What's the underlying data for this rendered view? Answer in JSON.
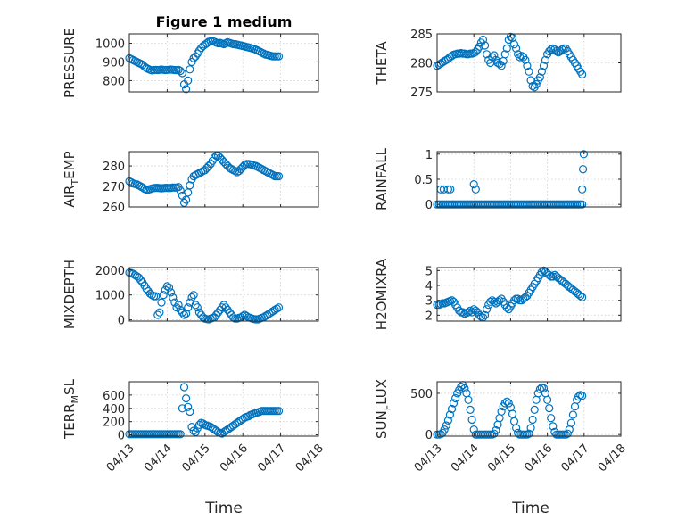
{
  "figure": {
    "title": "Figure 1 medium",
    "marker_color": "#0072BD",
    "xticklabels": [
      "04/13",
      "04/14",
      "04/15",
      "04/16",
      "04/17",
      "04/18"
    ],
    "xlabel": "Time"
  },
  "chart_data": [
    {
      "type": "scatter",
      "ylabel": "PRESSURE",
      "title": "Figure 1 medium",
      "xlim": [
        0,
        5
      ],
      "ylim": [
        740,
        1050
      ],
      "yticks": [
        800,
        900,
        1000
      ],
      "grid": true,
      "show_x_labels": false,
      "x": [
        0,
        0.05,
        0.1,
        0.15,
        0.2,
        0.25,
        0.3,
        0.35,
        0.4,
        0.45,
        0.5,
        0.55,
        0.6,
        0.65,
        0.7,
        0.75,
        0.8,
        0.85,
        0.9,
        0.95,
        1,
        1.05,
        1.1,
        1.15,
        1.2,
        1.25,
        1.3,
        1.35,
        1.4,
        1.45,
        1.5,
        1.55,
        1.6,
        1.65,
        1.7,
        1.75,
        1.8,
        1.85,
        1.9,
        1.95,
        2,
        2.05,
        2.1,
        2.15,
        2.2,
        2.25,
        2.3,
        2.35,
        2.4,
        2.45,
        2.5,
        2.55,
        2.6,
        2.65,
        2.7,
        2.75,
        2.8,
        2.85,
        2.9,
        2.95,
        3,
        3.05,
        3.1,
        3.15,
        3.2,
        3.25,
        3.3,
        3.35,
        3.4,
        3.45,
        3.5,
        3.55,
        3.6,
        3.65,
        3.7,
        3.75,
        3.8,
        3.85,
        3.9,
        3.95
      ],
      "y": [
        920,
        915,
        910,
        905,
        900,
        895,
        890,
        885,
        875,
        868,
        862,
        858,
        855,
        857,
        858,
        857,
        858,
        859,
        858,
        857,
        858,
        858,
        859,
        858,
        857,
        856,
        858,
        852,
        840,
        780,
        755,
        800,
        860,
        900,
        920,
        930,
        945,
        960,
        975,
        985,
        993,
        1000,
        1008,
        1010,
        1012,
        1008,
        1003,
        1000,
        1002,
        998,
        995,
        1000,
        1005,
        1002,
        998,
        995,
        995,
        993,
        990,
        988,
        985,
        983,
        980,
        978,
        975,
        972,
        970,
        965,
        960,
        955,
        950,
        945,
        940,
        938,
        935,
        932,
        930,
        930,
        930,
        930
      ]
    },
    {
      "type": "scatter",
      "ylabel": "THETA",
      "xlim": [
        0,
        5
      ],
      "ylim": [
        275,
        285
      ],
      "yticks": [
        275,
        280,
        285
      ],
      "grid": true,
      "show_x_labels": false,
      "x": [
        0,
        0.05,
        0.1,
        0.15,
        0.2,
        0.25,
        0.3,
        0.35,
        0.4,
        0.45,
        0.5,
        0.55,
        0.6,
        0.65,
        0.7,
        0.75,
        0.8,
        0.85,
        0.9,
        0.95,
        1,
        1.05,
        1.1,
        1.15,
        1.2,
        1.25,
        1.3,
        1.35,
        1.4,
        1.45,
        1.5,
        1.55,
        1.6,
        1.65,
        1.7,
        1.75,
        1.8,
        1.85,
        1.9,
        1.95,
        2,
        2.05,
        2.1,
        2.15,
        2.2,
        2.25,
        2.3,
        2.35,
        2.4,
        2.45,
        2.5,
        2.55,
        2.6,
        2.65,
        2.7,
        2.75,
        2.8,
        2.85,
        2.9,
        2.95,
        3,
        3.05,
        3.1,
        3.15,
        3.2,
        3.25,
        3.3,
        3.35,
        3.4,
        3.45,
        3.5,
        3.55,
        3.6,
        3.65,
        3.7,
        3.75,
        3.8,
        3.85,
        3.9,
        3.95
      ],
      "y": [
        279.5,
        279.7,
        279.9,
        280.1,
        280.3,
        280.5,
        280.7,
        281,
        281.2,
        281.4,
        281.5,
        281.6,
        281.6,
        281.7,
        281.6,
        281.6,
        281.5,
        281.5,
        281.6,
        281.6,
        281.7,
        281.9,
        282.3,
        282.8,
        283.5,
        284,
        283,
        281.5,
        280.5,
        280,
        281,
        281.3,
        280.5,
        280,
        279.8,
        279.5,
        280.3,
        281.5,
        282.5,
        284,
        284.5,
        284.3,
        283.2,
        282.5,
        281.5,
        281,
        281.2,
        281,
        280.5,
        279.5,
        278.5,
        277,
        276,
        275.8,
        276.3,
        277,
        277.5,
        278.5,
        279.5,
        280.5,
        281.5,
        282,
        282.3,
        282.5,
        282.3,
        282,
        281.8,
        282,
        282.3,
        282.5,
        282.5,
        282,
        281.5,
        281,
        280.5,
        280,
        279.5,
        279,
        278.5,
        278
      ]
    },
    {
      "type": "scatter",
      "ylabel": "AIR_TEMP",
      "xlim": [
        0,
        5
      ],
      "ylim": [
        260,
        287
      ],
      "yticks": [
        260,
        270,
        280
      ],
      "grid": true,
      "show_x_labels": false,
      "x": [
        0,
        0.05,
        0.1,
        0.15,
        0.2,
        0.25,
        0.3,
        0.35,
        0.4,
        0.45,
        0.5,
        0.55,
        0.6,
        0.65,
        0.7,
        0.75,
        0.8,
        0.85,
        0.9,
        0.95,
        1,
        1.05,
        1.1,
        1.15,
        1.2,
        1.25,
        1.3,
        1.35,
        1.4,
        1.45,
        1.5,
        1.55,
        1.6,
        1.65,
        1.7,
        1.75,
        1.8,
        1.85,
        1.9,
        1.95,
        2,
        2.05,
        2.1,
        2.15,
        2.2,
        2.25,
        2.3,
        2.35,
        2.4,
        2.45,
        2.5,
        2.55,
        2.6,
        2.65,
        2.7,
        2.75,
        2.8,
        2.85,
        2.9,
        2.95,
        3,
        3.05,
        3.1,
        3.15,
        3.2,
        3.25,
        3.3,
        3.35,
        3.4,
        3.45,
        3.5,
        3.55,
        3.6,
        3.65,
        3.7,
        3.75,
        3.8,
        3.85,
        3.9,
        3.95
      ],
      "y": [
        272.5,
        272,
        271.5,
        271.2,
        271,
        270.5,
        270,
        269.5,
        268.8,
        268.5,
        268.5,
        268.7,
        269,
        269.2,
        269.3,
        269.3,
        269.2,
        269.1,
        269.2,
        269.3,
        269.3,
        269.2,
        269.3,
        269.5,
        269.4,
        269.5,
        269.7,
        268,
        265.5,
        262,
        263.5,
        267,
        270.5,
        273.5,
        275,
        275.5,
        276,
        276.5,
        277,
        277.5,
        278,
        279,
        280,
        281,
        282.5,
        284,
        285,
        285,
        284,
        283,
        282,
        281,
        280,
        279,
        278.5,
        278,
        277.5,
        277,
        277.5,
        278.5,
        279.5,
        280.5,
        281,
        281,
        280.8,
        280.5,
        280.2,
        280,
        279.5,
        279,
        278.5,
        278,
        277.5,
        277,
        276.5,
        276,
        275.5,
        275,
        275,
        275
      ]
    },
    {
      "type": "scatter",
      "ylabel": "RAINFALL",
      "xlim": [
        0,
        5
      ],
      "ylim": [
        -0.05,
        1.05
      ],
      "yticks": [
        0,
        0.5,
        1
      ],
      "grid": true,
      "show_x_labels": false,
      "x": [
        0,
        0.05,
        0.1,
        0.15,
        0.2,
        0.25,
        0.3,
        0.35,
        0.4,
        0.45,
        0.5,
        0.55,
        0.6,
        0.65,
        0.7,
        0.75,
        0.8,
        0.85,
        0.9,
        0.95,
        1,
        1.05,
        1.1,
        1.15,
        1.2,
        1.25,
        1.3,
        1.35,
        1.4,
        1.45,
        1.5,
        1.55,
        1.6,
        1.65,
        1.7,
        1.75,
        1.8,
        1.85,
        1.9,
        1.95,
        2,
        2.05,
        2.1,
        2.15,
        2.2,
        2.25,
        2.3,
        2.35,
        2.4,
        2.45,
        2.5,
        2.55,
        2.6,
        2.65,
        2.7,
        2.75,
        2.8,
        2.85,
        2.9,
        2.95,
        3,
        3.05,
        3.1,
        3.15,
        3.2,
        3.25,
        3.3,
        3.35,
        3.4,
        3.45,
        3.5,
        3.55,
        3.6,
        3.65,
        3.7,
        3.75,
        3.8,
        3.85,
        3.9,
        3.95,
        0.1,
        0.18,
        0.3,
        0.36,
        1.0,
        1.05,
        3.95,
        3.97,
        3.99
      ],
      "y": [
        0,
        0,
        0,
        0,
        0,
        0,
        0,
        0,
        0,
        0,
        0,
        0,
        0,
        0,
        0,
        0,
        0,
        0,
        0,
        0,
        0,
        0,
        0,
        0,
        0,
        0,
        0,
        0,
        0,
        0,
        0,
        0,
        0,
        0,
        0,
        0,
        0,
        0,
        0,
        0,
        0,
        0,
        0,
        0,
        0,
        0,
        0,
        0,
        0,
        0,
        0,
        0,
        0,
        0,
        0,
        0,
        0,
        0,
        0,
        0,
        0,
        0,
        0,
        0,
        0,
        0,
        0,
        0,
        0,
        0,
        0,
        0,
        0,
        0,
        0,
        0,
        0,
        0,
        0,
        0,
        0.3,
        0.3,
        0.3,
        0.3,
        0.4,
        0.3,
        0.3,
        0.7,
        1.0
      ]
    },
    {
      "type": "scatter",
      "ylabel": "MIXDEPTH",
      "xlim": [
        0,
        5
      ],
      "ylim": [
        -50,
        2100
      ],
      "yticks": [
        0,
        1000,
        2000
      ],
      "grid": true,
      "show_x_labels": false,
      "x": [
        0,
        0.05,
        0.1,
        0.15,
        0.2,
        0.25,
        0.3,
        0.35,
        0.4,
        0.45,
        0.5,
        0.55,
        0.6,
        0.65,
        0.7,
        0.75,
        0.8,
        0.85,
        0.9,
        0.95,
        1,
        1.05,
        1.1,
        1.15,
        1.2,
        1.25,
        1.3,
        1.35,
        1.4,
        1.45,
        1.5,
        1.55,
        1.6,
        1.65,
        1.7,
        1.75,
        1.8,
        1.85,
        1.9,
        1.95,
        2,
        2.05,
        2.1,
        2.15,
        2.2,
        2.25,
        2.3,
        2.35,
        2.4,
        2.45,
        2.5,
        2.55,
        2.6,
        2.65,
        2.7,
        2.75,
        2.8,
        2.85,
        2.9,
        2.95,
        3,
        3.05,
        3.1,
        3.15,
        3.2,
        3.25,
        3.3,
        3.35,
        3.4,
        3.45,
        3.5,
        3.55,
        3.6,
        3.65,
        3.7,
        3.75,
        3.8,
        3.85,
        3.9,
        3.95
      ],
      "y": [
        1900,
        1880,
        1850,
        1800,
        1750,
        1700,
        1600,
        1500,
        1380,
        1250,
        1150,
        1050,
        1000,
        950,
        950,
        200,
        300,
        700,
        1000,
        1200,
        1350,
        1300,
        1100,
        900,
        700,
        500,
        600,
        400,
        300,
        200,
        250,
        500,
        700,
        900,
        1000,
        600,
        500,
        300,
        200,
        100,
        50,
        30,
        20,
        50,
        80,
        100,
        200,
        300,
        400,
        500,
        600,
        500,
        400,
        300,
        200,
        100,
        50,
        50,
        80,
        100,
        150,
        200,
        150,
        100,
        80,
        50,
        30,
        20,
        20,
        50,
        80,
        100,
        150,
        200,
        250,
        300,
        350,
        400,
        450,
        500
      ]
    },
    {
      "type": "scatter",
      "ylabel": "H2OMIXRA",
      "xlim": [
        0,
        5
      ],
      "ylim": [
        1.6,
        5.2
      ],
      "yticks": [
        2,
        3,
        4,
        5
      ],
      "grid": true,
      "show_x_labels": false,
      "x": [
        0,
        0.05,
        0.1,
        0.15,
        0.2,
        0.25,
        0.3,
        0.35,
        0.4,
        0.45,
        0.5,
        0.55,
        0.6,
        0.65,
        0.7,
        0.75,
        0.8,
        0.85,
        0.9,
        0.95,
        1,
        1.05,
        1.1,
        1.15,
        1.2,
        1.25,
        1.3,
        1.35,
        1.4,
        1.45,
        1.5,
        1.55,
        1.6,
        1.65,
        1.7,
        1.75,
        1.8,
        1.85,
        1.9,
        1.95,
        2,
        2.05,
        2.1,
        2.15,
        2.2,
        2.25,
        2.3,
        2.35,
        2.4,
        2.45,
        2.5,
        2.55,
        2.6,
        2.65,
        2.7,
        2.75,
        2.8,
        2.85,
        2.9,
        2.95,
        3,
        3.05,
        3.1,
        3.15,
        3.2,
        3.25,
        3.3,
        3.35,
        3.4,
        3.45,
        3.5,
        3.55,
        3.6,
        3.65,
        3.7,
        3.75,
        3.8,
        3.85,
        3.9,
        3.95
      ],
      "y": [
        2.7,
        2.7,
        2.75,
        2.8,
        2.8,
        2.85,
        2.9,
        2.95,
        3.0,
        2.9,
        2.7,
        2.5,
        2.3,
        2.2,
        2.2,
        2.1,
        2.15,
        2.2,
        2.3,
        2.2,
        2.4,
        2.3,
        2.2,
        2.0,
        1.9,
        1.85,
        2.0,
        2.4,
        2.7,
        2.9,
        3.0,
        2.9,
        2.8,
        2.9,
        3.0,
        3.1,
        2.9,
        2.7,
        2.5,
        2.4,
        2.6,
        2.8,
        3.0,
        3.1,
        3.1,
        3.0,
        3.0,
        3.1,
        3.2,
        3.3,
        3.5,
        3.7,
        3.9,
        4.1,
        4.3,
        4.5,
        4.7,
        4.9,
        5.0,
        4.9,
        4.8,
        4.7,
        4.6,
        4.6,
        4.7,
        4.6,
        4.5,
        4.4,
        4.3,
        4.2,
        4.1,
        4.0,
        3.9,
        3.8,
        3.7,
        3.6,
        3.5,
        3.4,
        3.3,
        3.2
      ]
    },
    {
      "type": "scatter",
      "ylabel": "TERR_MSL",
      "xlim": [
        0,
        5
      ],
      "ylim": [
        -20,
        800
      ],
      "yticks": [
        0,
        200,
        400,
        600
      ],
      "grid": true,
      "show_x_labels": true,
      "x": [
        0,
        0.05,
        0.1,
        0.15,
        0.2,
        0.25,
        0.3,
        0.35,
        0.4,
        0.45,
        0.5,
        0.55,
        0.6,
        0.65,
        0.7,
        0.75,
        0.8,
        0.85,
        0.9,
        0.95,
        1,
        1.05,
        1.1,
        1.15,
        1.2,
        1.25,
        1.3,
        1.35,
        1.4,
        1.45,
        1.5,
        1.55,
        1.6,
        1.65,
        1.7,
        1.75,
        1.8,
        1.85,
        1.9,
        1.95,
        2,
        2.05,
        2.1,
        2.15,
        2.2,
        2.25,
        2.3,
        2.35,
        2.4,
        2.45,
        2.5,
        2.55,
        2.6,
        2.65,
        2.7,
        2.75,
        2.8,
        2.85,
        2.9,
        2.95,
        3,
        3.05,
        3.1,
        3.15,
        3.2,
        3.25,
        3.3,
        3.35,
        3.4,
        3.45,
        3.5,
        3.55,
        3.6,
        3.65,
        3.7,
        3.75,
        3.8,
        3.85,
        3.9,
        3.95
      ],
      "y": [
        10,
        10,
        10,
        10,
        10,
        10,
        10,
        10,
        10,
        10,
        10,
        10,
        10,
        10,
        10,
        10,
        10,
        10,
        10,
        10,
        10,
        10,
        10,
        10,
        10,
        10,
        10,
        10,
        400,
        720,
        550,
        420,
        350,
        120,
        60,
        40,
        100,
        150,
        180,
        170,
        150,
        140,
        130,
        120,
        100,
        80,
        60,
        40,
        30,
        20,
        40,
        60,
        80,
        100,
        120,
        140,
        160,
        180,
        200,
        220,
        240,
        260,
        270,
        280,
        300,
        310,
        320,
        330,
        340,
        350,
        360,
        360,
        360,
        360,
        360,
        360,
        360,
        360,
        360,
        360
      ]
    },
    {
      "type": "scatter",
      "ylabel": "SUN_FLUX",
      "xlim": [
        0,
        5
      ],
      "ylim": [
        -20,
        640
      ],
      "yticks": [
        0,
        500
      ],
      "grid": true,
      "show_x_labels": true,
      "x": [
        0,
        0.05,
        0.1,
        0.15,
        0.2,
        0.25,
        0.3,
        0.35,
        0.4,
        0.45,
        0.5,
        0.55,
        0.6,
        0.65,
        0.7,
        0.75,
        0.8,
        0.85,
        0.9,
        0.95,
        1,
        1.05,
        1.1,
        1.15,
        1.2,
        1.25,
        1.3,
        1.35,
        1.4,
        1.45,
        1.5,
        1.55,
        1.6,
        1.65,
        1.7,
        1.75,
        1.8,
        1.85,
        1.9,
        1.95,
        2,
        2.05,
        2.1,
        2.15,
        2.2,
        2.25,
        2.3,
        2.35,
        2.4,
        2.45,
        2.5,
        2.55,
        2.6,
        2.65,
        2.7,
        2.75,
        2.8,
        2.85,
        2.9,
        2.95,
        3,
        3.05,
        3.1,
        3.15,
        3.2,
        3.25,
        3.3,
        3.35,
        3.4,
        3.45,
        3.5,
        3.55,
        3.6,
        3.65,
        3.7,
        3.75,
        3.8,
        3.85,
        3.9,
        3.95
      ],
      "y": [
        0,
        0,
        5,
        20,
        60,
        110,
        170,
        240,
        310,
        380,
        440,
        500,
        540,
        580,
        600,
        560,
        500,
        420,
        300,
        180,
        60,
        0,
        0,
        0,
        0,
        0,
        0,
        0,
        0,
        0,
        0,
        10,
        50,
        120,
        200,
        280,
        340,
        380,
        400,
        380,
        330,
        250,
        160,
        80,
        20,
        0,
        0,
        0,
        0,
        0,
        10,
        80,
        180,
        300,
        420,
        500,
        550,
        570,
        560,
        500,
        420,
        320,
        200,
        100,
        30,
        0,
        0,
        0,
        0,
        0,
        0,
        10,
        60,
        140,
        240,
        340,
        420,
        460,
        480,
        470
      ]
    }
  ]
}
